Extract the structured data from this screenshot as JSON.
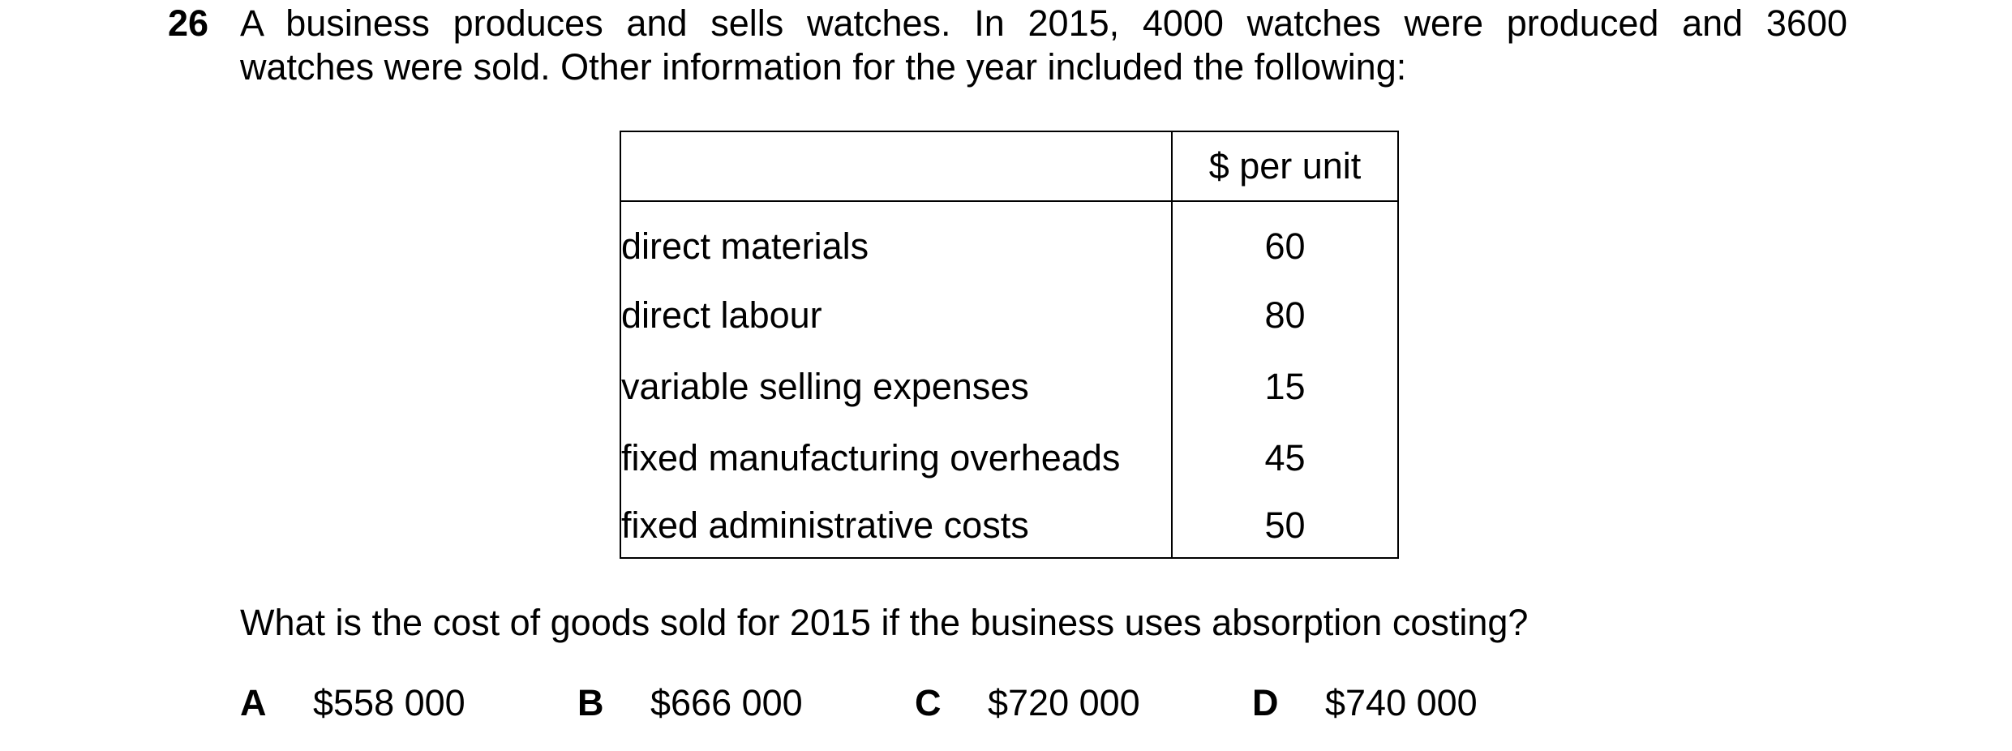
{
  "question": {
    "number": "26",
    "stem_line1": "A business produces and sells watches. In 2015, 4000 watches were produced and 3600",
    "stem_line2": "watches were sold. Other information for the year included the following:",
    "prompt": "What is the cost of goods sold for 2015 if the business uses absorption costing?"
  },
  "table": {
    "header_item": "",
    "header_value": "$ per unit",
    "rows": [
      {
        "item": "direct materials",
        "value": "60"
      },
      {
        "item": "direct labour",
        "value": "80"
      },
      {
        "item": "variable selling expenses",
        "value": "15"
      },
      {
        "item": "fixed manufacturing overheads",
        "value": "45"
      },
      {
        "item": "fixed administrative costs",
        "value": "50"
      }
    ]
  },
  "options": [
    {
      "letter": "A",
      "text": "$558 000"
    },
    {
      "letter": "B",
      "text": "$666 000"
    },
    {
      "letter": "C",
      "text": "$720 000"
    },
    {
      "letter": "D",
      "text": "$740 000"
    }
  ]
}
